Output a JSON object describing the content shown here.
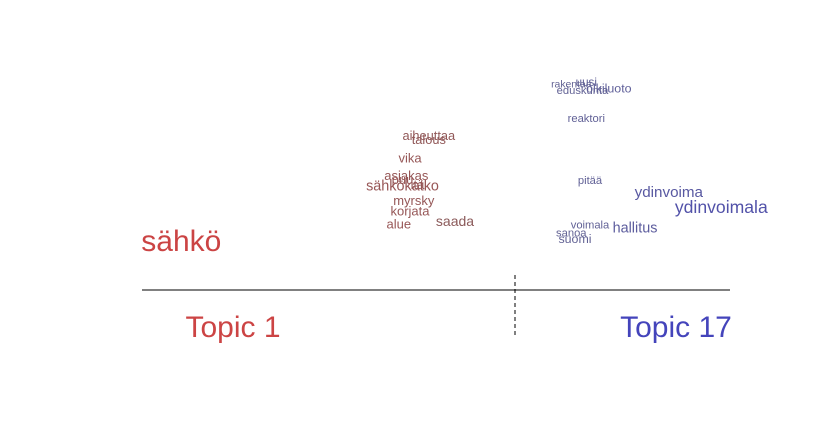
{
  "chart_data": {
    "type": "scatter",
    "title": "",
    "xlabel": "",
    "ylabel": "",
    "left_topic": {
      "label": "Topic 1",
      "color": "#cc4444"
    },
    "right_topic": {
      "label": "Topic 17",
      "color": "#4444bb"
    },
    "x_range": [
      -1,
      1
    ],
    "divider_x": 0,
    "words": [
      {
        "text": "sähkö",
        "x": -0.89,
        "y": 0.09,
        "weight": 1.0
      },
      {
        "text": "aiheuttaa",
        "x": -0.23,
        "y": 0.93,
        "weight": 0.14
      },
      {
        "text": "talous",
        "x": -0.23,
        "y": 0.9,
        "weight": 0.14
      },
      {
        "text": "vika",
        "x": -0.28,
        "y": 0.76,
        "weight": 0.15
      },
      {
        "text": "asiakas",
        "x": -0.29,
        "y": 0.63,
        "weight": 0.15
      },
      {
        "text": "puu",
        "x": -0.3,
        "y": 0.6,
        "weight": 0.15
      },
      {
        "text": "sähkökatko",
        "x": -0.3,
        "y": 0.55,
        "weight": 0.22
      },
      {
        "text": "itä",
        "x": -0.26,
        "y": 0.56,
        "weight": 0.15
      },
      {
        "text": "myrsky",
        "x": -0.27,
        "y": 0.44,
        "weight": 0.15
      },
      {
        "text": "korjata",
        "x": -0.28,
        "y": 0.36,
        "weight": 0.15
      },
      {
        "text": "alue",
        "x": -0.31,
        "y": 0.26,
        "weight": 0.15
      },
      {
        "text": "saada",
        "x": -0.16,
        "y": 0.28,
        "weight": 0.2
      },
      {
        "text": "rakentaa",
        "x": 0.15,
        "y": 1.33,
        "weight": 0.02
      },
      {
        "text": "uusi",
        "x": 0.19,
        "y": 1.34,
        "weight": 0.08
      },
      {
        "text": "olkiluoto",
        "x": 0.25,
        "y": 1.29,
        "weight": 0.12
      },
      {
        "text": "eduskunta",
        "x": 0.18,
        "y": 1.28,
        "weight": 0.06
      },
      {
        "text": "reaktori",
        "x": 0.19,
        "y": 1.07,
        "weight": 0.06
      },
      {
        "text": "pitää",
        "x": 0.2,
        "y": 0.6,
        "weight": 0.06
      },
      {
        "text": "ydinvoima",
        "x": 0.41,
        "y": 0.5,
        "weight": 0.26
      },
      {
        "text": "ydinvoimala",
        "x": 0.55,
        "y": 0.38,
        "weight": 0.38
      },
      {
        "text": "voimala",
        "x": 0.2,
        "y": 0.26,
        "weight": 0.06
      },
      {
        "text": "hallitus",
        "x": 0.32,
        "y": 0.23,
        "weight": 0.22
      },
      {
        "text": "sanoa",
        "x": 0.15,
        "y": 0.2,
        "weight": 0.06
      },
      {
        "text": "suomi",
        "x": 0.16,
        "y": 0.15,
        "weight": 0.12
      }
    ]
  }
}
